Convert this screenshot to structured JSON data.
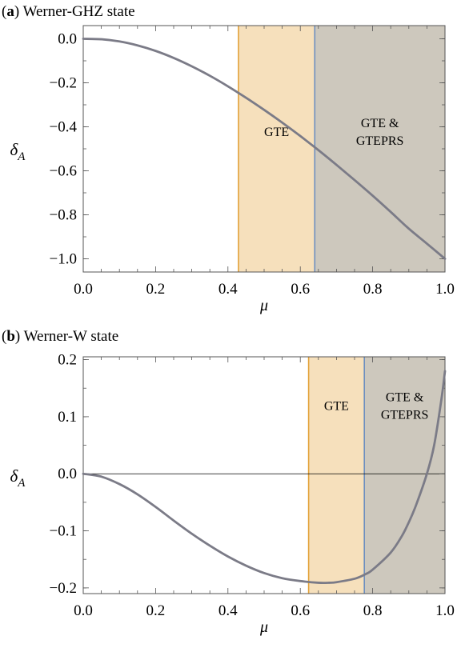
{
  "chart_data": [
    {
      "panel_letter": "a",
      "title": "Werner-GHZ state",
      "type": "line",
      "xlabel": "μ",
      "ylabel_main": "δ",
      "ylabel_sub": "A",
      "xlim": [
        0,
        1
      ],
      "ylim": [
        -1.06,
        0.06
      ],
      "xticks": [
        0,
        0.2,
        0.4,
        0.6,
        0.8,
        1.0
      ],
      "xtick_labels": [
        "0.0",
        "0.2",
        "0.4",
        "0.6",
        "0.8",
        "1.0"
      ],
      "yticks": [
        0,
        -0.2,
        -0.4,
        -0.6,
        -0.8,
        -1.0
      ],
      "ytick_labels": [
        "0.0",
        "−0.2",
        "−0.4",
        "−0.6",
        "−0.8",
        "−1.0"
      ],
      "zero_line": false,
      "regions": [
        {
          "x_start": 0.429,
          "x_end": 0.64,
          "label": [
            "GTE"
          ],
          "fill": "#f6e0bc",
          "edge": "#e3a33b",
          "label_y": -0.42
        },
        {
          "x_start": 0.64,
          "x_end": 1.0,
          "label": [
            "GTE &",
            "GTEPRS"
          ],
          "fill": "#cdc8bd",
          "edge": "#6d8fc0",
          "label_y": -0.42
        }
      ],
      "series": [
        {
          "color": "#7b7b87",
          "x": [
            0,
            0.05,
            0.1,
            0.15,
            0.2,
            0.25,
            0.3,
            0.35,
            0.4,
            0.45,
            0.5,
            0.55,
            0.6,
            0.65,
            0.7,
            0.75,
            0.8,
            0.85,
            0.9,
            0.95,
            1.0
          ],
          "y": [
            0,
            -0.002,
            -0.012,
            -0.03,
            -0.055,
            -0.087,
            -0.125,
            -0.168,
            -0.216,
            -0.268,
            -0.323,
            -0.381,
            -0.442,
            -0.506,
            -0.573,
            -0.642,
            -0.713,
            -0.787,
            -0.863,
            -0.931,
            -1.0
          ]
        }
      ]
    },
    {
      "panel_letter": "b",
      "title": "Werner-W state",
      "type": "line",
      "xlabel": "μ",
      "ylabel_main": "δ",
      "ylabel_sub": "A",
      "xlim": [
        0,
        1
      ],
      "ylim": [
        -0.21,
        0.205
      ],
      "xticks": [
        0,
        0.2,
        0.4,
        0.6,
        0.8,
        1.0
      ],
      "xtick_labels": [
        "0.0",
        "0.2",
        "0.4",
        "0.6",
        "0.8",
        "1.0"
      ],
      "yticks": [
        0.2,
        0.1,
        0,
        -0.1,
        -0.2
      ],
      "ytick_labels": [
        "0.2",
        "0.1",
        "0.0",
        "−0.1",
        "−0.2"
      ],
      "zero_line": true,
      "regions": [
        {
          "x_start": 0.623,
          "x_end": 0.777,
          "label": [
            "GTE"
          ],
          "fill": "#f6e0bc",
          "edge": "#e3a33b",
          "label_y": 0.12
        },
        {
          "x_start": 0.777,
          "x_end": 1.0,
          "label": [
            "GTE &",
            "GTEPRS"
          ],
          "fill": "#cdc8bd",
          "edge": "#6d8fc0",
          "label_y": 0.12
        }
      ],
      "series": [
        {
          "color": "#7b7b87",
          "x": [
            0,
            0.05,
            0.1,
            0.15,
            0.2,
            0.25,
            0.3,
            0.35,
            0.4,
            0.45,
            0.5,
            0.55,
            0.6,
            0.65,
            0.68,
            0.7,
            0.75,
            0.78,
            0.8,
            0.85,
            0.88,
            0.9,
            0.92,
            0.95,
            0.97,
            0.99,
            1.0
          ],
          "y": [
            0,
            -0.005,
            -0.018,
            -0.036,
            -0.058,
            -0.082,
            -0.105,
            -0.126,
            -0.145,
            -0.161,
            -0.174,
            -0.183,
            -0.188,
            -0.191,
            -0.191,
            -0.19,
            -0.184,
            -0.176,
            -0.168,
            -0.138,
            -0.11,
            -0.085,
            -0.055,
            0.0,
            0.05,
            0.13,
            0.18
          ]
        }
      ]
    }
  ]
}
